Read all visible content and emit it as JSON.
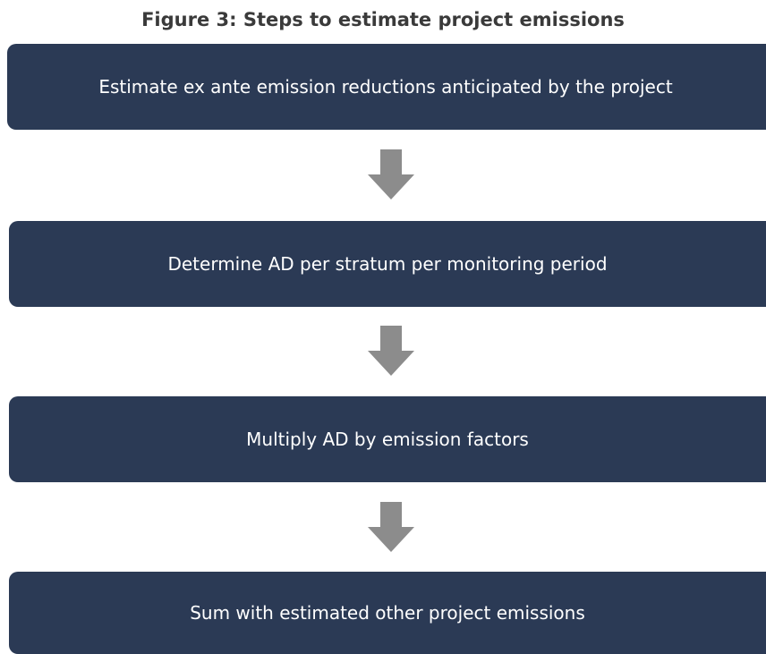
{
  "title": "Figure 3: Steps to estimate project emissions",
  "steps": [
    "Estimate ex ante emission reductions anticipated by the project",
    "Determine AD per stratum per monitoring period",
    "Multiply AD by emission factors",
    "Sum with estimated other project emissions"
  ]
}
